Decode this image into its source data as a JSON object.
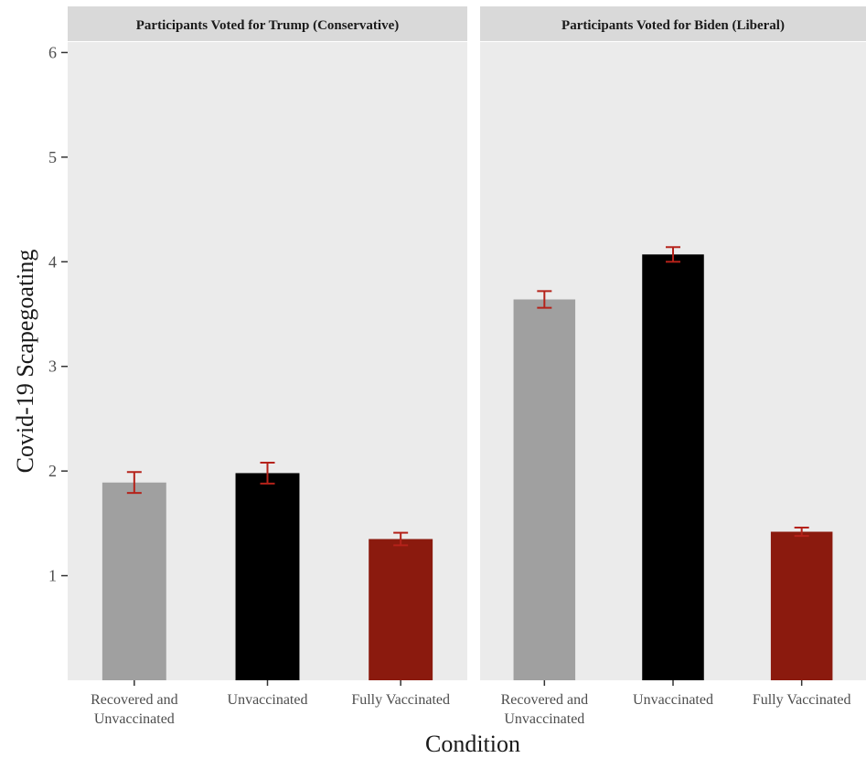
{
  "chart_data": {
    "type": "bar",
    "xlabel": "Condition",
    "ylabel": "Covid-19 Scapegoating",
    "ylim": [
      0,
      6.1
    ],
    "y_ticks": [
      1,
      2,
      3,
      4,
      5,
      6
    ],
    "grid": false,
    "categories": [
      [
        "Recovered and",
        "Unvaccinated"
      ],
      [
        "Unvaccinated"
      ],
      [
        "Fully Vaccinated"
      ]
    ],
    "category_colors": [
      "#a0a0a0",
      "#000000",
      "#8b1a0e"
    ],
    "error_bar_color": "#b5221a",
    "panels": [
      {
        "title": "Participants Voted for Trump (Conservative)",
        "values": [
          1.89,
          1.98,
          1.35
        ],
        "errors": [
          0.1,
          0.1,
          0.06
        ]
      },
      {
        "title": "Participants Voted for Biden (Liberal)",
        "values": [
          3.64,
          4.07,
          1.42
        ],
        "errors": [
          0.08,
          0.07,
          0.04
        ]
      }
    ]
  }
}
